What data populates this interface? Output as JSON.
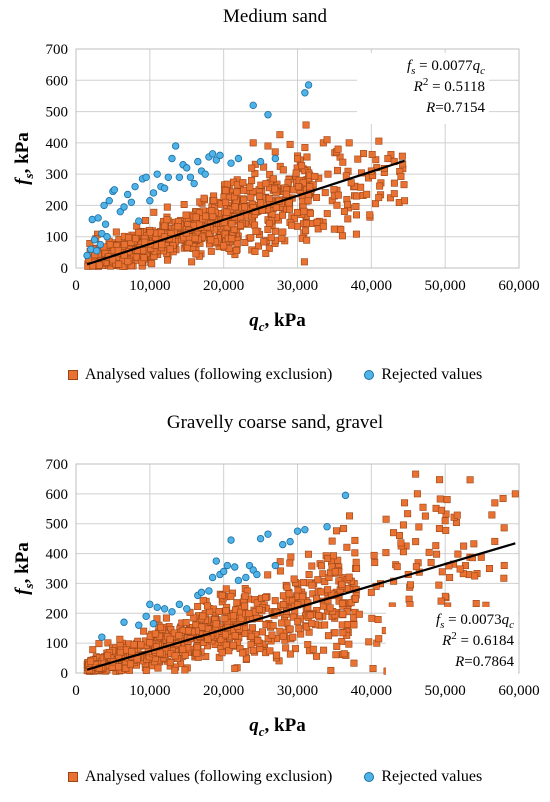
{
  "chart_data": [
    {
      "type": "scatter",
      "title": "Medium sand",
      "xlabel": "q",
      "xlabel_sub": "c",
      "xlabel_unit": ", kPa",
      "ylabel": "f",
      "ylabel_sub": "s",
      "ylabel_unit": ", kPa",
      "xlim": [
        0,
        60000
      ],
      "ylim": [
        0,
        700
      ],
      "xticks": [
        0,
        10000,
        20000,
        30000,
        40000,
        50000,
        60000
      ],
      "xtick_labels": [
        "0",
        "10,000",
        "20,000",
        "30,000",
        "40,000",
        "50,000",
        "60,000"
      ],
      "yticks": [
        0,
        100,
        200,
        300,
        400,
        500,
        600,
        700
      ],
      "ytick_labels": [
        "0",
        "100",
        "200",
        "300",
        "400",
        "500",
        "600",
        "700"
      ],
      "grid": true,
      "legend_position": "bottom",
      "trendline": {
        "slope": 0.0077,
        "x": [
          1500,
          44500
        ]
      },
      "annotation": {
        "lines": [
          {
            "pre": "f",
            "sub": "s",
            "post": " = 0.0077",
            "var": "q",
            "var_sub": "c"
          },
          {
            "pre": "R",
            "sup": "2",
            "post": " = 0.5118"
          },
          {
            "pre": "R",
            "post": "=0.7154"
          }
        ]
      },
      "series": [
        {
          "name": "Analysed values (following exclusion)",
          "marker": "square",
          "color": "#E97132",
          "edge": "#9A4516",
          "clusters": [
            {
              "n": 620,
              "x": [
                1500,
                22000
              ],
              "slope": 0.0077,
              "sd": 42
            },
            {
              "n": 260,
              "x": [
                20000,
                32000
              ],
              "slope": 0.0077,
              "sd": 55
            },
            {
              "n": 90,
              "x": [
                30000,
                44500
              ],
              "slope": 0.0067,
              "sd": 55
            }
          ],
          "extra": [
            [
              24000,
              400
            ],
            [
              26000,
              390
            ],
            [
              29000,
              395
            ],
            [
              31000,
              385
            ],
            [
              33500,
              400
            ],
            [
              34000,
              410
            ],
            [
              35500,
              380
            ],
            [
              37000,
              400
            ],
            [
              40000,
              310
            ],
            [
              44500,
              215
            ],
            [
              41000,
              225
            ],
            [
              38000,
              230
            ]
          ]
        },
        {
          "name": "Rejected values",
          "marker": "circle",
          "color": "#4FB3E8",
          "edge": "#1B6FA3",
          "points": [
            [
              1500,
              40
            ],
            [
              2000,
              60
            ],
            [
              2500,
              90
            ],
            [
              2200,
              155
            ],
            [
              3000,
              160
            ],
            [
              3500,
              110
            ],
            [
              3800,
              200
            ],
            [
              4000,
              140
            ],
            [
              4500,
              215
            ],
            [
              5000,
              245
            ],
            [
              5200,
              250
            ],
            [
              6000,
              180
            ],
            [
              6500,
              195
            ],
            [
              7000,
              235
            ],
            [
              7500,
              210
            ],
            [
              8000,
              260
            ],
            [
              8500,
              150
            ],
            [
              9000,
              285
            ],
            [
              9500,
              290
            ],
            [
              10000,
              215
            ],
            [
              10500,
              240
            ],
            [
              11000,
              300
            ],
            [
              11500,
              260
            ],
            [
              12000,
              255
            ],
            [
              12500,
              290
            ],
            [
              13000,
              350
            ],
            [
              13500,
              390
            ],
            [
              14000,
              290
            ],
            [
              14500,
              330
            ],
            [
              15000,
              320
            ],
            [
              15500,
              290
            ],
            [
              16000,
              270
            ],
            [
              16500,
              340
            ],
            [
              17000,
              310
            ],
            [
              17500,
              300
            ],
            [
              18000,
              355
            ],
            [
              18500,
              365
            ],
            [
              19000,
              345
            ],
            [
              19500,
              360
            ],
            [
              2800,
              55
            ],
            [
              3300,
              75
            ],
            [
              4200,
              100
            ],
            [
              24000,
              520
            ],
            [
              26000,
              490
            ],
            [
              31000,
              560
            ],
            [
              31500,
              585
            ],
            [
              21000,
              335
            ],
            [
              22000,
              350
            ],
            [
              25000,
              340
            ],
            [
              27000,
              350
            ]
          ]
        }
      ]
    },
    {
      "type": "scatter",
      "title": "Gravelly coarse sand, gravel",
      "xlabel": "q",
      "xlabel_sub": "c",
      "xlabel_unit": ", kPa",
      "ylabel": "f",
      "ylabel_sub": "s",
      "ylabel_unit": ", kPa",
      "xlim": [
        0,
        60000
      ],
      "ylim": [
        0,
        700
      ],
      "xticks": [
        0,
        10000,
        20000,
        30000,
        40000,
        50000,
        60000
      ],
      "xtick_labels": [
        "0",
        "10,000",
        "20,000",
        "30,000",
        "40,000",
        "50,000",
        "60,000"
      ],
      "yticks": [
        0,
        100,
        200,
        300,
        400,
        500,
        600,
        700
      ],
      "ytick_labels": [
        "0",
        "100",
        "200",
        "300",
        "400",
        "500",
        "600",
        "700"
      ],
      "grid": true,
      "legend_position": "bottom",
      "trendline": {
        "slope": 0.0073,
        "x": [
          1500,
          59500
        ]
      },
      "annotation": {
        "lines": [
          {
            "pre": "f",
            "sub": "s",
            "post": " = 0.0073",
            "var": "q",
            "var_sub": "c"
          },
          {
            "pre": "R",
            "sup": "2",
            "post": " = 0.6184"
          },
          {
            "pre": "R",
            "post": "=0.7864"
          }
        ]
      },
      "series": [
        {
          "name": "Analysed values (following exclusion)",
          "marker": "square",
          "color": "#E97132",
          "edge": "#9A4516",
          "clusters": [
            {
              "n": 520,
              "x": [
                1500,
                22000
              ],
              "slope": 0.0078,
              "sd": 45
            },
            {
              "n": 300,
              "x": [
                20000,
                38000
              ],
              "slope": 0.0072,
              "sd": 70
            },
            {
              "n": 110,
              "x": [
                36000,
                58000
              ],
              "slope": 0.007,
              "sd": 90
            }
          ],
          "extra": [
            [
              59500,
              600
            ],
            [
              44500,
              570
            ],
            [
              47000,
              555
            ],
            [
              49500,
              545
            ],
            [
              42000,
              515
            ],
            [
              50000,
              510
            ],
            [
              52500,
              425
            ],
            [
              54000,
              325
            ],
            [
              56000,
              350
            ],
            [
              58000,
              360
            ],
            [
              45000,
              330
            ],
            [
              41000,
              115
            ],
            [
              48000,
              160
            ],
            [
              40000,
              270
            ],
            [
              46000,
              440
            ],
            [
              43000,
              470
            ],
            [
              38000,
              350
            ]
          ]
        },
        {
          "name": "Rejected values",
          "marker": "circle",
          "color": "#4FB3E8",
          "edge": "#1B6FA3",
          "points": [
            [
              3500,
              120
            ],
            [
              6500,
              170
            ],
            [
              8500,
              160
            ],
            [
              9500,
              190
            ],
            [
              10000,
              230
            ],
            [
              11000,
              220
            ],
            [
              12000,
              215
            ],
            [
              13000,
              205
            ],
            [
              14000,
              230
            ],
            [
              15000,
              215
            ],
            [
              16500,
              260
            ],
            [
              17000,
              270
            ],
            [
              18000,
              275
            ],
            [
              18500,
              320
            ],
            [
              19000,
              375
            ],
            [
              19500,
              330
            ],
            [
              20000,
              340
            ],
            [
              20500,
              360
            ],
            [
              21000,
              445
            ],
            [
              22000,
              310
            ],
            [
              23000,
              320
            ],
            [
              23500,
              360
            ],
            [
              24000,
              345
            ],
            [
              25000,
              450
            ],
            [
              26000,
              465
            ],
            [
              28000,
              430
            ],
            [
              29000,
              440
            ],
            [
              30000,
              475
            ],
            [
              34000,
              490
            ],
            [
              36500,
              595
            ],
            [
              21500,
              355
            ],
            [
              24500,
              330
            ],
            [
              27000,
              360
            ],
            [
              31000,
              480
            ],
            [
              10500,
              165
            ]
          ]
        }
      ]
    }
  ]
}
